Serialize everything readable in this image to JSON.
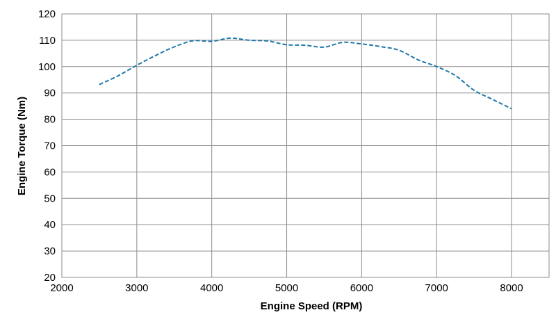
{
  "chart_data": {
    "type": "line",
    "title": "",
    "xlabel": "Engine Speed (RPM)",
    "ylabel": "Engine Torque (Nm)",
    "xlim": [
      2000,
      8500
    ],
    "ylim": [
      20,
      120
    ],
    "xticks": [
      2000,
      3000,
      4000,
      5000,
      6000,
      7000,
      8000
    ],
    "yticks": [
      20,
      30,
      40,
      50,
      60,
      70,
      80,
      90,
      100,
      110,
      120
    ],
    "grid": true,
    "legend": "none",
    "series": [
      {
        "color": "#1f77a8",
        "style": "dashed",
        "x": [
          2500,
          2750,
          3000,
          3250,
          3500,
          3750,
          4000,
          4250,
          4500,
          4750,
          5000,
          5250,
          5500,
          5750,
          6000,
          6250,
          6500,
          6750,
          7000,
          7250,
          7500,
          7750,
          8000
        ],
        "y": [
          93.2,
          96.5,
          100.5,
          104.2,
          107.5,
          109.8,
          109.6,
          110.8,
          110.0,
          109.7,
          108.3,
          108.1,
          107.4,
          109.2,
          108.6,
          107.6,
          106.2,
          102.6,
          100.0,
          96.6,
          91.0,
          87.5,
          84.0
        ]
      }
    ]
  }
}
